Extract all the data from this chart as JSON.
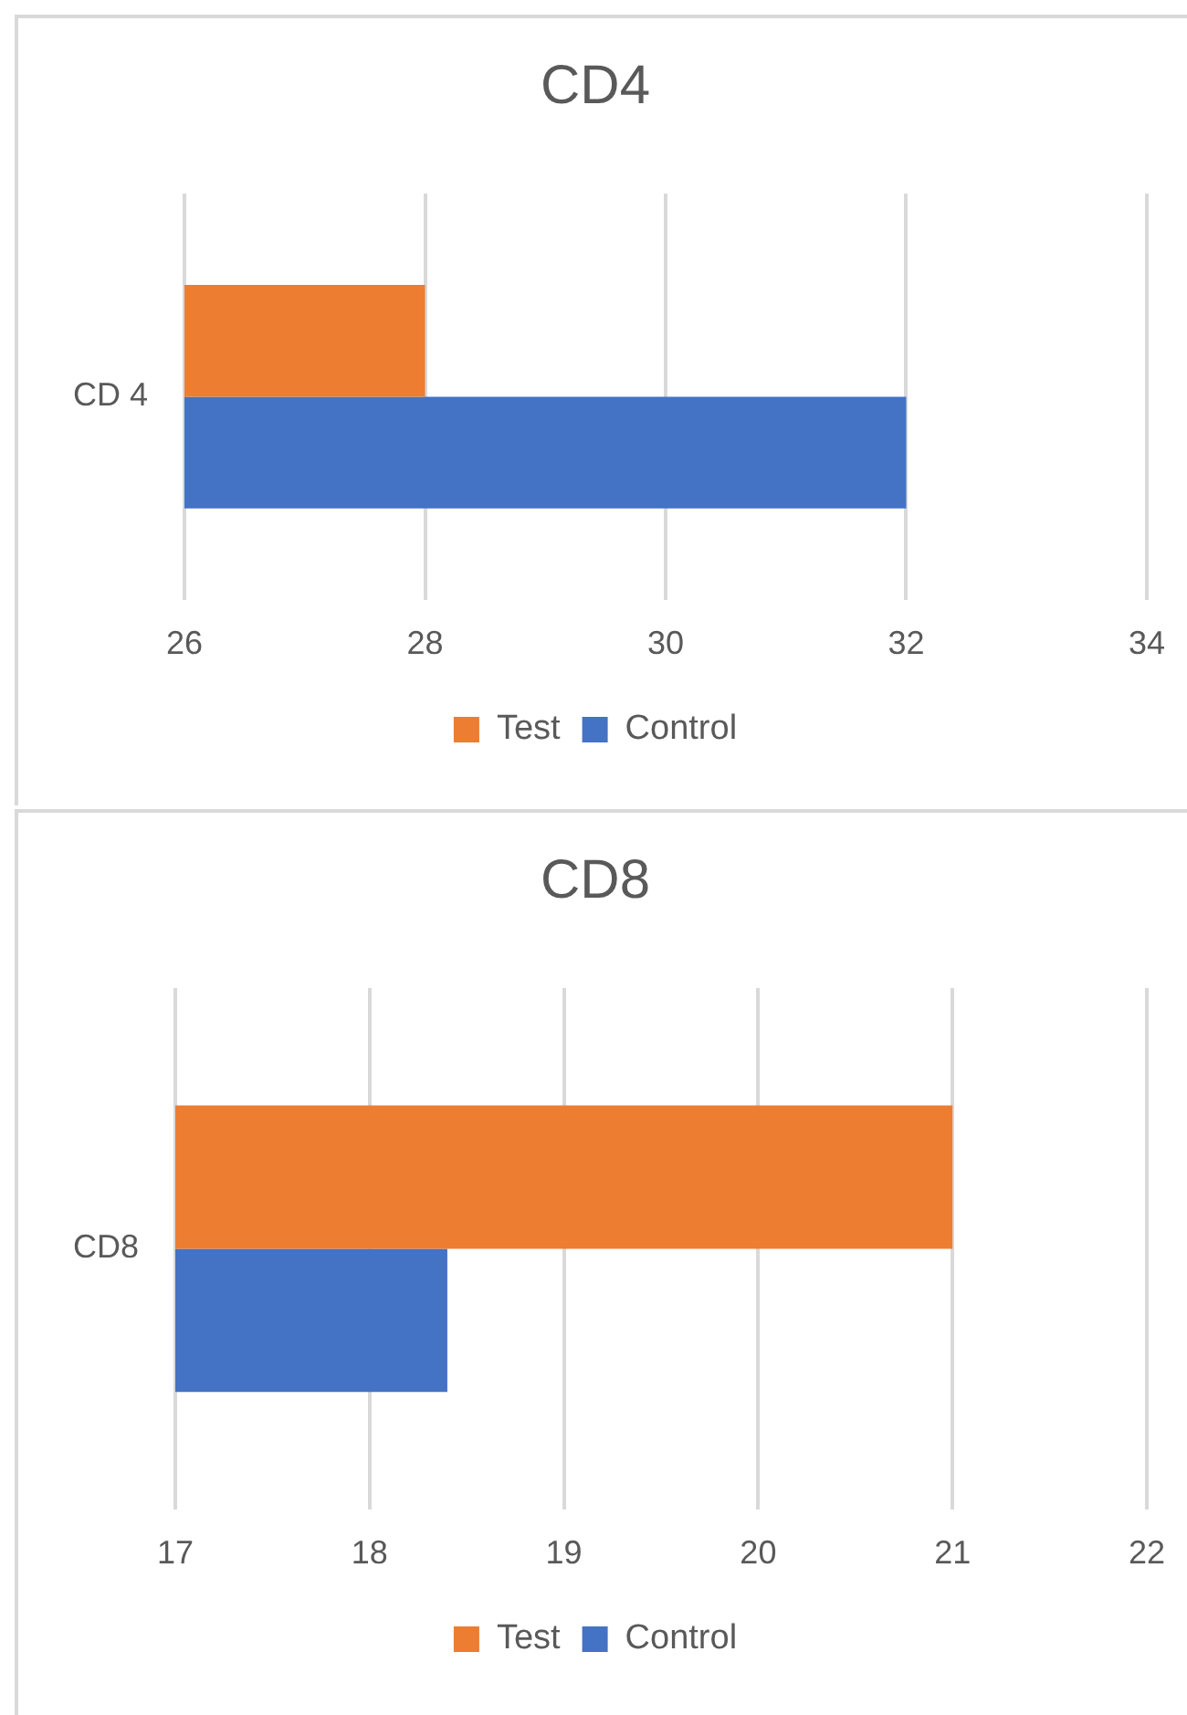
{
  "chart_data": [
    {
      "type": "bar",
      "title": "CD4",
      "orientation": "horizontal",
      "categories": [
        "CD 4"
      ],
      "series": [
        {
          "name": "Test",
          "color": "#ed7d31",
          "values": [
            28
          ]
        },
        {
          "name": "Control",
          "color": "#4472c4",
          "values": [
            32
          ]
        }
      ],
      "xlim": [
        26,
        34
      ],
      "xticks": [
        26,
        28,
        30,
        32,
        34
      ],
      "grid": "x",
      "legend": "bottom"
    },
    {
      "type": "bar",
      "title": "CD8",
      "orientation": "horizontal",
      "categories": [
        "CD8"
      ],
      "series": [
        {
          "name": "Test",
          "color": "#ed7d31",
          "values": [
            21
          ]
        },
        {
          "name": "Control",
          "color": "#4472c4",
          "values": [
            18.4
          ]
        }
      ],
      "xlim": [
        17,
        22
      ],
      "xticks": [
        17,
        18,
        19,
        20,
        21,
        22
      ],
      "grid": "x",
      "legend": "bottom"
    }
  ]
}
